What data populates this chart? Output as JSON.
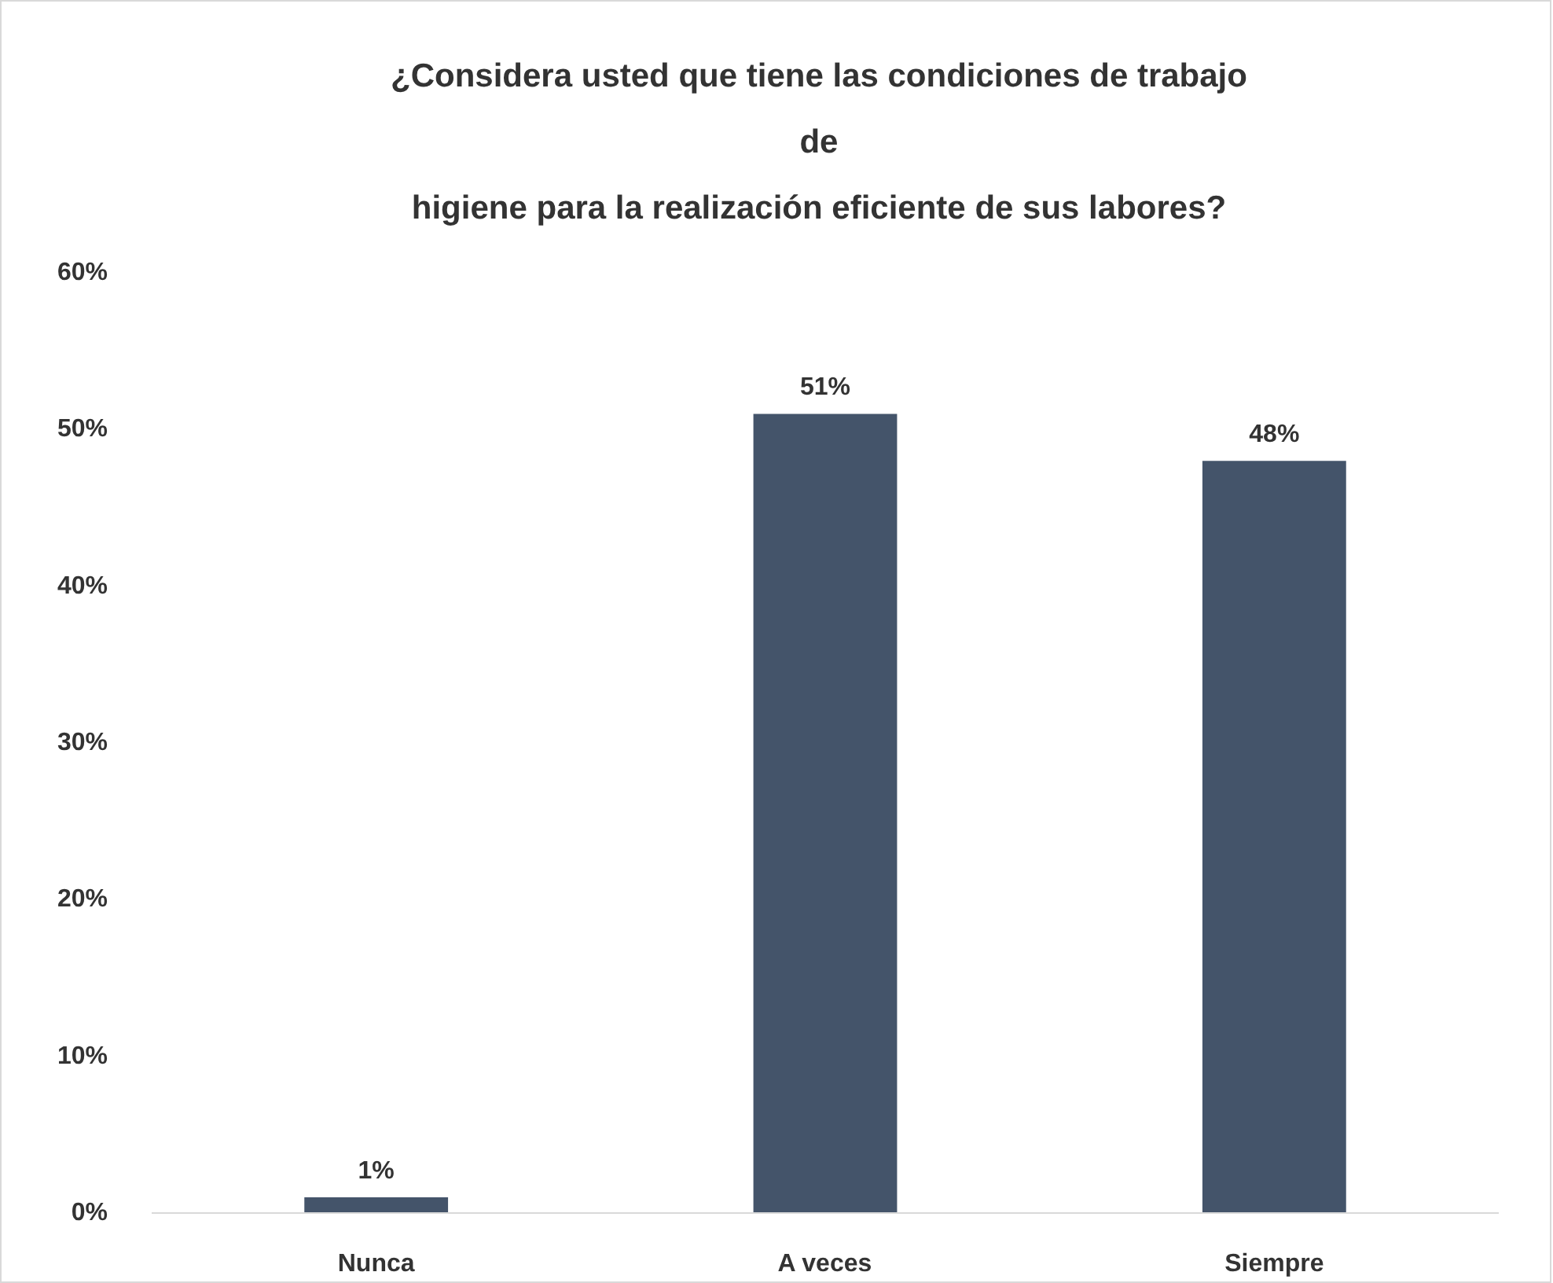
{
  "chart_data": {
    "type": "bar",
    "title": "¿Considera usted que tiene las condiciones de trabajo\nde\nhigiene para la realización eficiente de sus labores?",
    "categories": [
      "Nunca",
      "A veces",
      "Siempre"
    ],
    "values": [
      1,
      51,
      48
    ],
    "color": "#44546a",
    "value_labels": [
      "1%",
      "51%",
      "48%"
    ],
    "ylim": [
      0,
      60
    ],
    "yticks": [
      {
        "value": 0,
        "label": "0%"
      },
      {
        "value": 10,
        "label": "10%"
      },
      {
        "value": 20,
        "label": "20%"
      },
      {
        "value": 30,
        "label": "30%"
      },
      {
        "value": 40,
        "label": "40%"
      },
      {
        "value": 50,
        "label": "50%"
      },
      {
        "value": 60,
        "label": "60%"
      }
    ]
  }
}
